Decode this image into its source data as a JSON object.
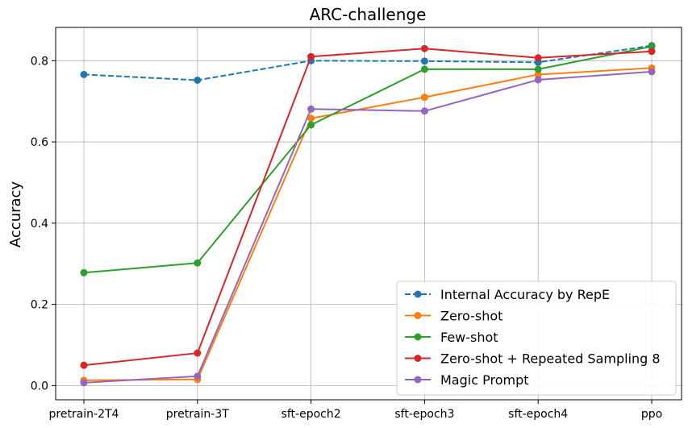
{
  "chart_data": {
    "type": "line",
    "title": "ARC-challenge",
    "xlabel": "",
    "ylabel": "Accuracy",
    "categories": [
      "pretrain-2T4",
      "pretrain-3T",
      "sft-epoch2",
      "sft-epoch3",
      "sft-epoch4",
      "ppo"
    ],
    "ylim": [
      -0.035,
      0.882
    ],
    "yticks": [
      "0.0",
      "0.2",
      "0.4",
      "0.6",
      "0.8"
    ],
    "ytick_values": [
      0.0,
      0.2,
      0.4,
      0.6,
      0.8
    ],
    "grid": true,
    "legend_position": "lower-right",
    "series": [
      {
        "name": "Internal Accuracy by RepE",
        "color": "#1f77b4",
        "dashed": true,
        "values": [
          0.766,
          0.752,
          0.8,
          0.799,
          0.796,
          0.837
        ]
      },
      {
        "name": "Zero-shot",
        "color": "#ff7f0e",
        "dashed": false,
        "values": [
          0.013,
          0.015,
          0.658,
          0.71,
          0.766,
          0.782
        ]
      },
      {
        "name": "Few-shot",
        "color": "#2ca02c",
        "dashed": false,
        "values": [
          0.278,
          0.302,
          0.642,
          0.779,
          0.779,
          0.835
        ]
      },
      {
        "name": "Zero-shot + Repeated Sampling 8",
        "color": "#d62728",
        "dashed": false,
        "values": [
          0.05,
          0.08,
          0.81,
          0.83,
          0.807,
          0.823
        ]
      },
      {
        "name": "Magic Prompt",
        "color": "#9467bd",
        "dashed": false,
        "values": [
          0.007,
          0.023,
          0.681,
          0.676,
          0.753,
          0.773
        ]
      }
    ]
  }
}
